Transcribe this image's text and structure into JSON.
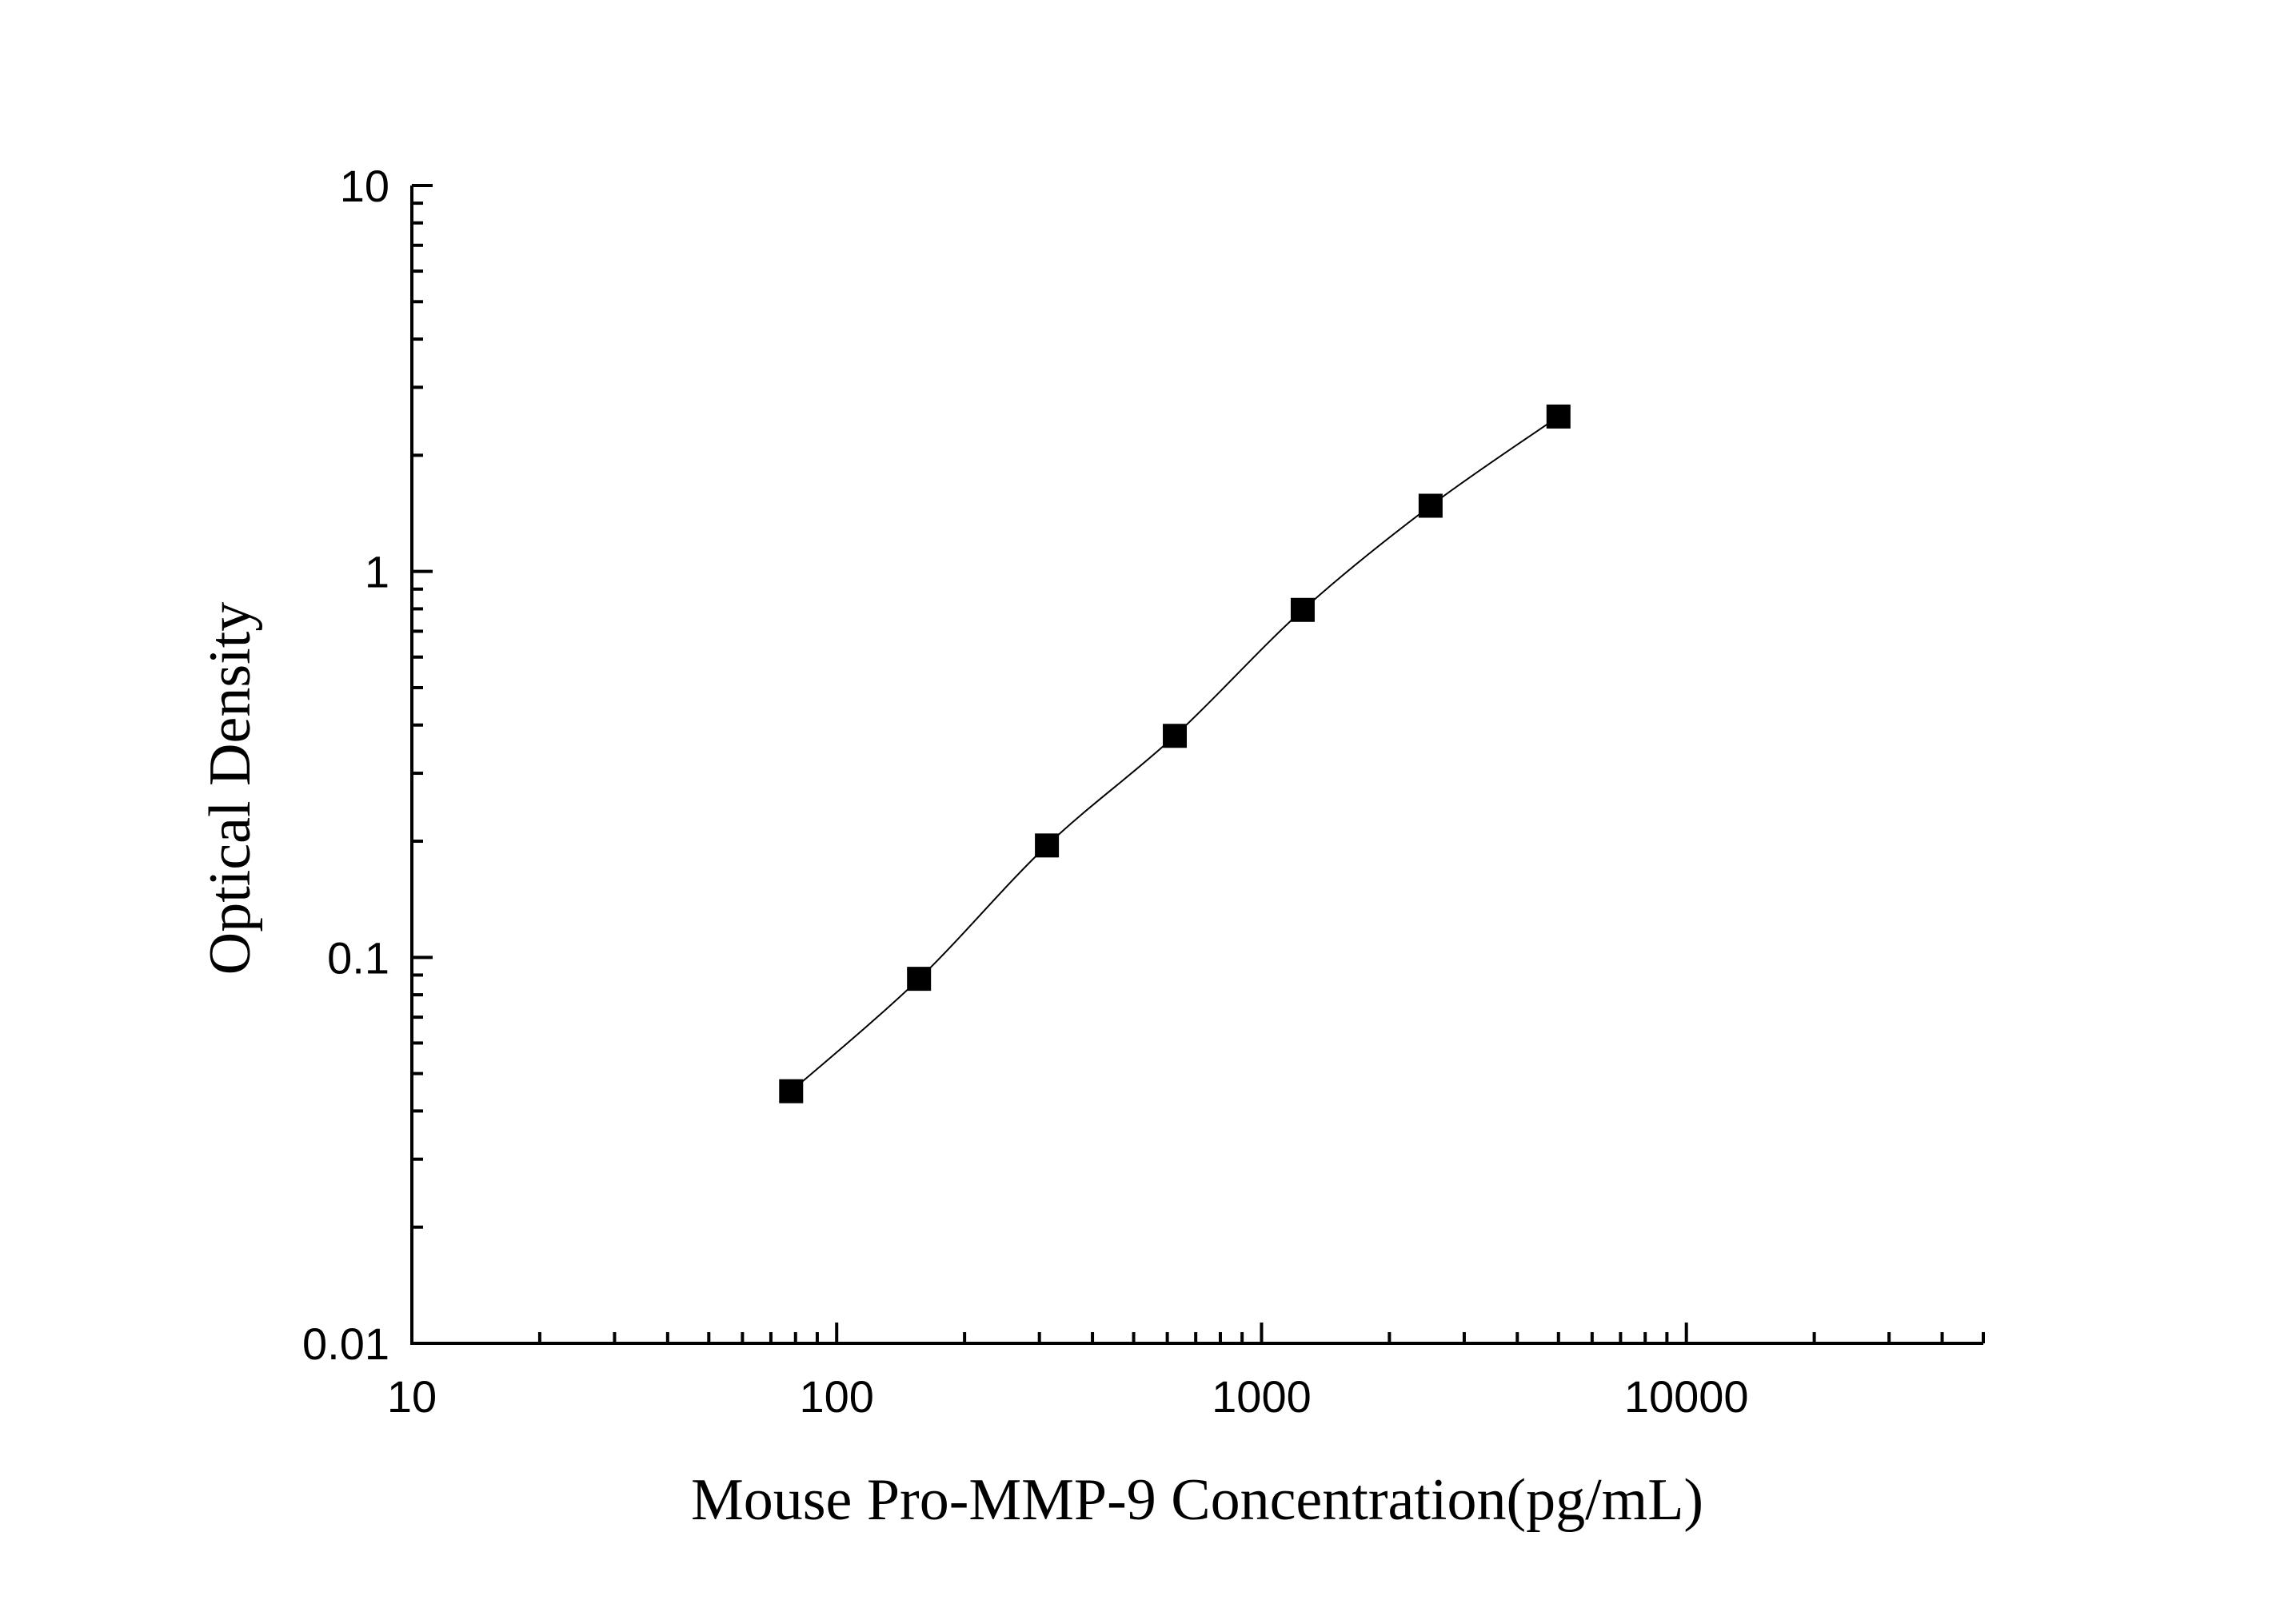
{
  "chart_data": {
    "type": "scatter",
    "title": "",
    "xlabel": "Mouse Pro-MMP-9 Concentration(pg/mL)",
    "ylabel": "Optical Density",
    "x_scale": "log",
    "y_scale": "log",
    "xlim": [
      10,
      50000
    ],
    "ylim": [
      0.01,
      10
    ],
    "x_tick_labels": [
      "10",
      "100",
      "1000",
      "10000"
    ],
    "y_tick_labels": [
      "0.01",
      "0.1",
      "1",
      "10"
    ],
    "grid": false,
    "legend": "none",
    "series": [
      {
        "x": [
          78.125,
          156.25,
          312.5,
          625,
          1250,
          2500,
          5000
        ],
        "y": [
          0.045,
          0.088,
          0.195,
          0.375,
          0.795,
          1.48,
          2.52
        ],
        "marker": "square",
        "fit_line": true,
        "color": "#000000"
      }
    ]
  }
}
